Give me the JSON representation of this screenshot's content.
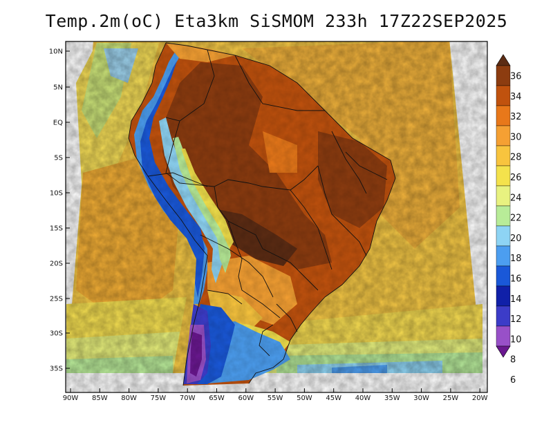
{
  "title": "Temp.2m(oC) Eta3km SiSMOM 233h 17Z22SEP2025",
  "map": {
    "lat_ticks": [
      "10N",
      "5N",
      "EQ",
      "5S",
      "10S",
      "15S",
      "20S",
      "25S",
      "30S",
      "35S"
    ],
    "lon_ticks": [
      "90W",
      "85W",
      "80W",
      "75W",
      "70W",
      "65W",
      "60W",
      "55W",
      "50W",
      "45W",
      "40W",
      "35W",
      "30W",
      "25W",
      "20W"
    ]
  },
  "colorbar": {
    "levels": [
      "36",
      "34",
      "32",
      "30",
      "28",
      "26",
      "24",
      "22",
      "20",
      "18",
      "16",
      "14",
      "12",
      "10",
      "8",
      "6"
    ],
    "colors": [
      "#5c2c14",
      "#8c3c10",
      "#c0520e",
      "#e8781a",
      "#f5a033",
      "#f8c43e",
      "#f4e24c",
      "#e8f280",
      "#b8ec98",
      "#8ed4f4",
      "#4c9ef0",
      "#1a58d8",
      "#1020a8",
      "#3c3cc8",
      "#9850c8",
      "#6a1890"
    ]
  }
}
